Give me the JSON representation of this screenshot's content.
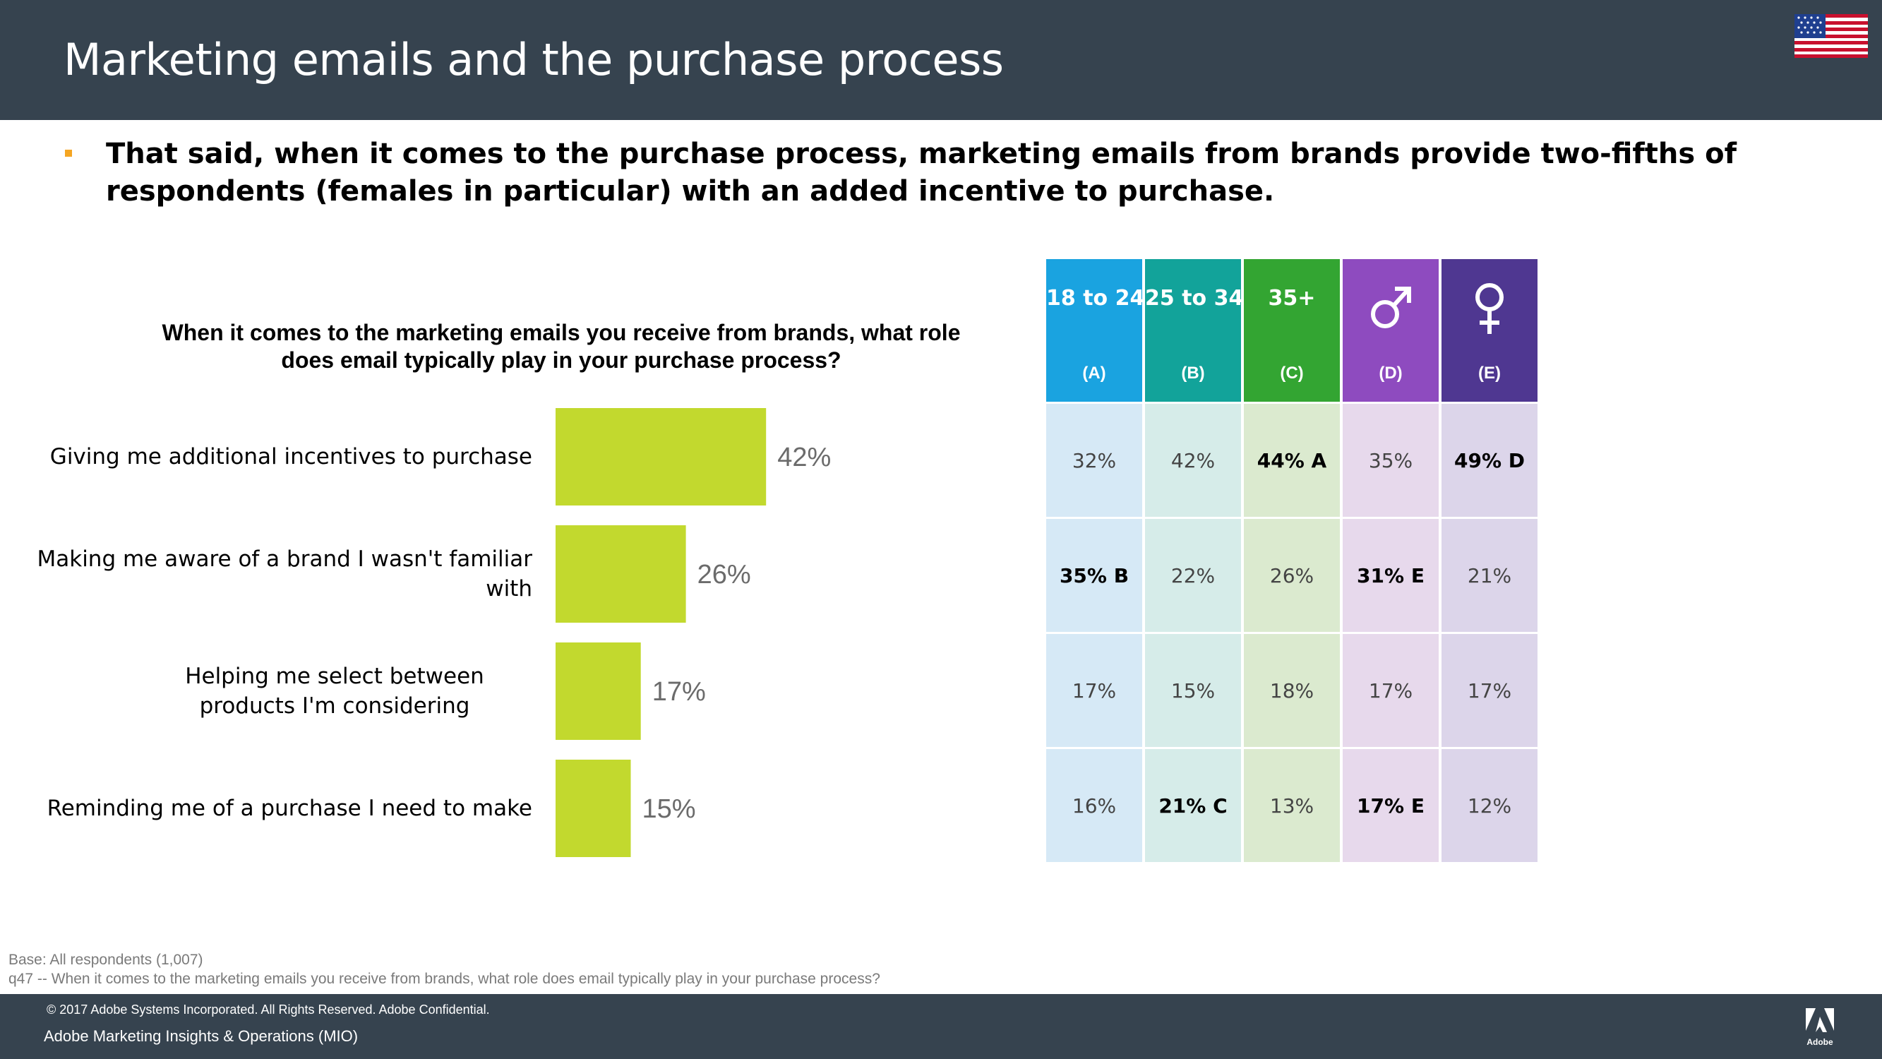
{
  "header": {
    "title": "Marketing emails and the purchase process",
    "flag_icon": "us-flag-icon"
  },
  "subhead": "That said, when it comes to the purchase process, marketing emails from brands provide two-fifths of respondents (females in particular) with an added incentive to purchase.",
  "colors": {
    "header_bg": "#36434f",
    "bar": "#c2d92e",
    "bullet": "#f5a623",
    "col_a": "#1aa3e0",
    "col_b": "#12a39a",
    "col_c": "#33a532",
    "col_d": "#8e4bbf",
    "col_e": "#4f3791"
  },
  "chart_data": {
    "type": "bar",
    "orientation": "horizontal",
    "title": "When it comes to the marketing emails you receive from brands, what role does email typically play in your purchase process?",
    "categories": [
      "Giving me additional incentives to purchase",
      "Making me aware of a brand I wasn't familiar with",
      "Helping me select between products I'm considering",
      "Reminding me of a purchase I need to make"
    ],
    "values": [
      42,
      26,
      17,
      15
    ],
    "value_labels": [
      "42%",
      "26%",
      "17%",
      "15%"
    ],
    "unit": "%",
    "xlim": [
      0,
      100
    ],
    "grid": false,
    "legend": "none"
  },
  "table": {
    "columns": [
      {
        "title": "18 to 24",
        "sub": "(A)",
        "icon": null
      },
      {
        "title": "25 to 34",
        "sub": "(B)",
        "icon": null
      },
      {
        "title": "35+",
        "sub": "(C)",
        "icon": null
      },
      {
        "title": "",
        "sub": "(D)",
        "icon": "male-symbol-icon"
      },
      {
        "title": "",
        "sub": "(E)",
        "icon": "female-symbol-icon"
      }
    ],
    "rows": [
      [
        "32%",
        "42%",
        "44% A",
        "35%",
        "49% D"
      ],
      [
        "35% B",
        "22%",
        "26%",
        "31% E",
        "21%"
      ],
      [
        "17%",
        "15%",
        "18%",
        "17%",
        "17%"
      ],
      [
        "16%",
        "21% C",
        "13%",
        "17% E",
        "12%"
      ]
    ],
    "significant": [
      [
        false,
        false,
        true,
        false,
        true
      ],
      [
        true,
        false,
        false,
        true,
        false
      ],
      [
        false,
        false,
        false,
        false,
        false
      ],
      [
        false,
        true,
        false,
        true,
        false
      ]
    ]
  },
  "footnotes": {
    "base": "Base: All respondents (1,007)",
    "question": "q47 -- When it comes to the marketing emails you receive from brands, what role does email typically play in your purchase process?"
  },
  "footer": {
    "copyright": "© 2017 Adobe Systems Incorporated.  All Rights Reserved.  Adobe Confidential.",
    "org": "Adobe Marketing Insights & Operations (MIO)",
    "logo_icon": "adobe-logo-icon"
  }
}
